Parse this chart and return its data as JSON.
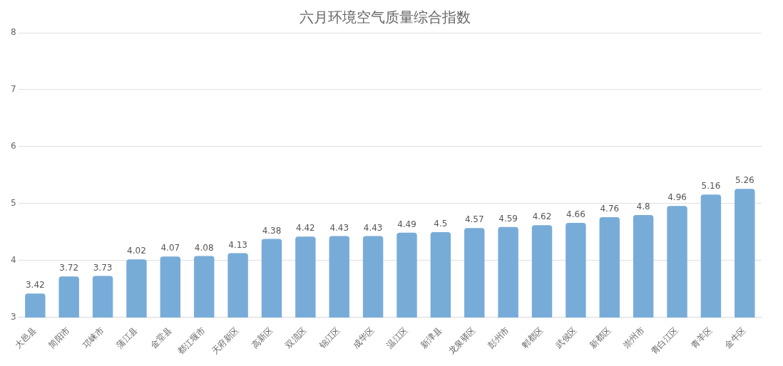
{
  "chart_data": {
    "type": "bar",
    "title": "六月环境空气质量综合指数",
    "categories": [
      "大邑县",
      "简阳市",
      "邛崃市",
      "蒲江县",
      "金堂县",
      "都江堰市",
      "天府新区",
      "高新区",
      "双流区",
      "锦江区",
      "成华区",
      "温江区",
      "新津县",
      "龙泉驿区",
      "彭州市",
      "郫都区",
      "武侯区",
      "新都区",
      "崇州市",
      "青白江区",
      "青羊区",
      "金牛区"
    ],
    "values": [
      3.42,
      3.72,
      3.73,
      4.02,
      4.07,
      4.08,
      4.13,
      4.38,
      4.42,
      4.43,
      4.43,
      4.49,
      4.5,
      4.57,
      4.59,
      4.62,
      4.66,
      4.76,
      4.8,
      4.96,
      5.16,
      5.26
    ],
    "color": "#78acd8",
    "ylim": [
      3,
      8
    ],
    "yticks": [
      3,
      4,
      5,
      6,
      7,
      8
    ],
    "grid": "y",
    "data_labels": true
  }
}
